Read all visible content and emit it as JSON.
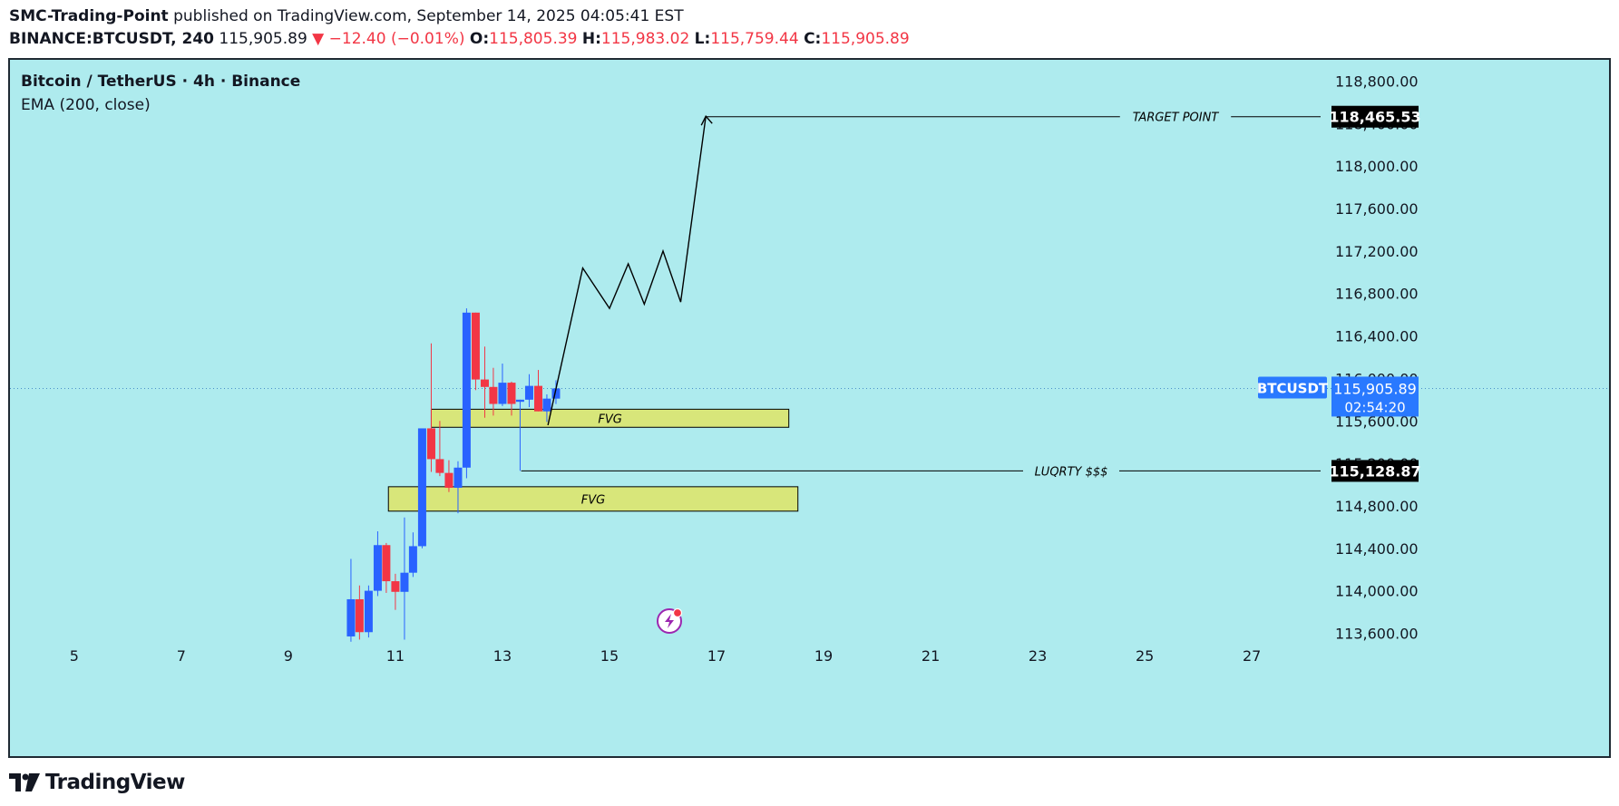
{
  "header": {
    "publisher": "SMC-Trading-Point",
    "published_text": "published on TradingView.com, September 14, 2025 04:05:41 EST",
    "symbol": "BINANCE:BTCUSDT, 240",
    "last": "115,905.89",
    "change": "▼ −12.40 (−0.01%)",
    "o_label": "O:",
    "o_value": "115,805.39",
    "h_label": "H:",
    "h_value": "115,983.02",
    "l_label": "L:",
    "l_value": "115,759.44",
    "c_label": "C:",
    "c_value": "115,905.89"
  },
  "legend": {
    "title": "Bitcoin / TetherUS · 4h · Binance",
    "indicator": "EMA (200, close)"
  },
  "footer": {
    "brand": "TradingView"
  },
  "colors": {
    "background": "#aeebee",
    "up": "#2962ff",
    "down": "#f23645",
    "fvg_fill": "#d8e67a",
    "line": "#000000",
    "price_badge": "#2979ff"
  },
  "chart_data": {
    "type": "candlestick",
    "x_axis": {
      "ticks": [
        "5",
        "7",
        "9",
        "11",
        "13",
        "15",
        "17",
        "19",
        "21",
        "23",
        "25",
        "27"
      ],
      "tick_values": [
        5,
        7,
        9,
        11,
        13,
        15,
        17,
        19,
        21,
        23,
        25,
        27
      ],
      "range": [
        3.8,
        28.2
      ]
    },
    "y_axis": {
      "ticks": [
        "113,600.00",
        "114,000.00",
        "114,400.00",
        "114,800.00",
        "115,200.00",
        "115,600.00",
        "116,000.00",
        "116,400.00",
        "116,800.00",
        "117,200.00",
        "117,600.00",
        "118,000.00",
        "118,400.00",
        "118,800.00"
      ],
      "tick_values": [
        113600,
        114000,
        114400,
        114800,
        115200,
        115600,
        116000,
        116400,
        116800,
        117200,
        117600,
        118000,
        118400,
        118800
      ],
      "range": [
        113450,
        118950
      ]
    },
    "candles": [
      {
        "t": 10.17,
        "o": 113570,
        "h": 114300,
        "l": 113520,
        "c": 113920
      },
      {
        "t": 10.33,
        "o": 113920,
        "h": 114050,
        "l": 113540,
        "c": 113610
      },
      {
        "t": 10.5,
        "o": 113610,
        "h": 114050,
        "l": 113560,
        "c": 114000
      },
      {
        "t": 10.67,
        "o": 114000,
        "h": 114560,
        "l": 113950,
        "c": 114430
      },
      {
        "t": 10.83,
        "o": 114430,
        "h": 114450,
        "l": 113980,
        "c": 114090
      },
      {
        "t": 11.0,
        "o": 114090,
        "h": 114160,
        "l": 113820,
        "c": 113990
      },
      {
        "t": 11.17,
        "o": 113990,
        "h": 114690,
        "l": 113540,
        "c": 114170
      },
      {
        "t": 11.33,
        "o": 114170,
        "h": 114550,
        "l": 114130,
        "c": 114420
      },
      {
        "t": 11.5,
        "o": 114420,
        "h": 115530,
        "l": 114400,
        "c": 115530
      },
      {
        "t": 11.67,
        "o": 115530,
        "h": 116330,
        "l": 115120,
        "c": 115240
      },
      {
        "t": 11.83,
        "o": 115240,
        "h": 115600,
        "l": 115080,
        "c": 115110
      },
      {
        "t": 12.0,
        "o": 115110,
        "h": 115230,
        "l": 114930,
        "c": 114970
      },
      {
        "t": 12.17,
        "o": 114970,
        "h": 115220,
        "l": 114730,
        "c": 115160
      },
      {
        "t": 12.33,
        "o": 115160,
        "h": 116660,
        "l": 115060,
        "c": 116620
      },
      {
        "t": 12.5,
        "o": 116620,
        "h": 116620,
        "l": 115890,
        "c": 115990
      },
      {
        "t": 12.67,
        "o": 115990,
        "h": 116300,
        "l": 115630,
        "c": 115920
      },
      {
        "t": 12.83,
        "o": 115920,
        "h": 116100,
        "l": 115650,
        "c": 115760
      },
      {
        "t": 13.0,
        "o": 115760,
        "h": 116140,
        "l": 115740,
        "c": 115960
      },
      {
        "t": 13.17,
        "o": 115960,
        "h": 115970,
        "l": 115650,
        "c": 115760
      },
      {
        "t": 13.33,
        "o": 115780,
        "h": 115800,
        "l": 115130,
        "c": 115800
      },
      {
        "t": 13.5,
        "o": 115800,
        "h": 116040,
        "l": 115730,
        "c": 115930
      },
      {
        "t": 13.67,
        "o": 115930,
        "h": 116080,
        "l": 115690,
        "c": 115690
      },
      {
        "t": 13.83,
        "o": 115690,
        "h": 115850,
        "l": 115590,
        "c": 115810
      },
      {
        "t": 14.0,
        "o": 115810,
        "h": 115983,
        "l": 115759,
        "c": 115906
      }
    ],
    "zones": [
      {
        "label": "FVG",
        "x_start": 11.67,
        "x_end": 18.35,
        "y_low": 115540,
        "y_high": 115710
      },
      {
        "label": "FVG",
        "x_start": 10.87,
        "x_end": 18.52,
        "y_low": 114750,
        "y_high": 114980
      }
    ],
    "levels": [
      {
        "label": "TARGET POINT",
        "value": 118465.53,
        "value_text": "118,465.53",
        "x_start": 16.8
      },
      {
        "label": "LUQRTY $$$",
        "value": 115128.87,
        "value_text": "115,128.87",
        "x_start": 13.35
      }
    ],
    "projection_path": [
      {
        "t": 13.85,
        "p": 115560
      },
      {
        "t": 14.5,
        "p": 117040
      },
      {
        "t": 15.0,
        "p": 116660
      },
      {
        "t": 15.35,
        "p": 117080
      },
      {
        "t": 15.65,
        "p": 116700
      },
      {
        "t": 16.0,
        "p": 117200
      },
      {
        "t": 16.33,
        "p": 116720
      },
      {
        "t": 16.8,
        "p": 118470
      }
    ],
    "current_price": {
      "symbol": "BTCUSDT",
      "value": 115905.89,
      "value_text": "115,905.89",
      "countdown": "02:54:20"
    }
  }
}
